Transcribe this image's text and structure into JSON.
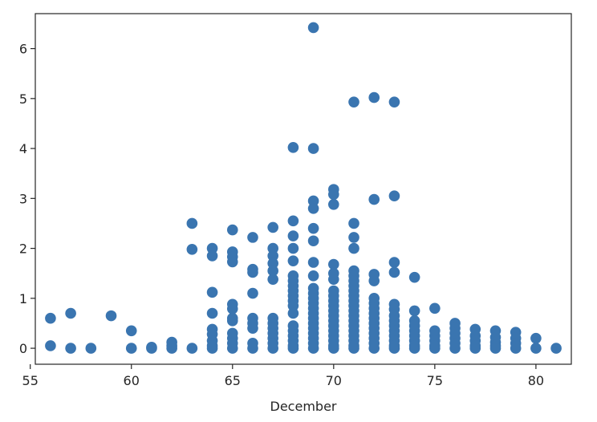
{
  "chart_data": {
    "type": "scatter",
    "title": "",
    "xlabel": "December",
    "ylabel": "",
    "xlim": [
      55.25,
      81.75
    ],
    "ylim": [
      -0.32,
      6.7
    ],
    "xticks": [
      55,
      60,
      65,
      70,
      75,
      80
    ],
    "yticks": [
      0,
      1,
      2,
      3,
      4,
      5,
      6
    ],
    "grid": false,
    "legend": "none",
    "colors": {
      "marker": "#3a75b0",
      "axis": "#262626"
    },
    "series": [
      {
        "points": [
          [
            56,
            0.6
          ],
          [
            56,
            0.05
          ],
          [
            57,
            0.7
          ],
          [
            57,
            0.0
          ],
          [
            58,
            0.0
          ],
          [
            59,
            0.65
          ],
          [
            60,
            0.35
          ],
          [
            60,
            0.0
          ],
          [
            61,
            0.02
          ],
          [
            61,
            0.0
          ],
          [
            62,
            0.12
          ],
          [
            62,
            0.05
          ],
          [
            62,
            0.0
          ],
          [
            63,
            2.5
          ],
          [
            63,
            1.98
          ],
          [
            63,
            0.0
          ],
          [
            64,
            2.0
          ],
          [
            64,
            1.85
          ],
          [
            64,
            1.12
          ],
          [
            64,
            0.7
          ],
          [
            64,
            0.38
          ],
          [
            64,
            0.28
          ],
          [
            64,
            0.15
          ],
          [
            64,
            0.05
          ],
          [
            64,
            0.0
          ],
          [
            65,
            2.37
          ],
          [
            65,
            1.93
          ],
          [
            65,
            1.83
          ],
          [
            65,
            1.73
          ],
          [
            65,
            0.88
          ],
          [
            65,
            0.79
          ],
          [
            65,
            0.6
          ],
          [
            65,
            0.55
          ],
          [
            65,
            0.3
          ],
          [
            65,
            0.2
          ],
          [
            65,
            0.1
          ],
          [
            65,
            0.0
          ],
          [
            66,
            2.22
          ],
          [
            66,
            1.58
          ],
          [
            66,
            1.52
          ],
          [
            66,
            1.1
          ],
          [
            66,
            0.6
          ],
          [
            66,
            0.5
          ],
          [
            66,
            0.4
          ],
          [
            66,
            0.1
          ],
          [
            66,
            0.0
          ],
          [
            67,
            2.42
          ],
          [
            67,
            2.0
          ],
          [
            67,
            1.85
          ],
          [
            67,
            1.7
          ],
          [
            67,
            1.55
          ],
          [
            67,
            1.38
          ],
          [
            67,
            0.6
          ],
          [
            67,
            0.5
          ],
          [
            67,
            0.4
          ],
          [
            67,
            0.3
          ],
          [
            67,
            0.2
          ],
          [
            67,
            0.1
          ],
          [
            67,
            0.0
          ],
          [
            68,
            4.02
          ],
          [
            68,
            2.55
          ],
          [
            68,
            2.25
          ],
          [
            68,
            2.0
          ],
          [
            68,
            1.75
          ],
          [
            68,
            1.45
          ],
          [
            68,
            1.35
          ],
          [
            68,
            1.25
          ],
          [
            68,
            1.15
          ],
          [
            68,
            1.05
          ],
          [
            68,
            0.95
          ],
          [
            68,
            0.85
          ],
          [
            68,
            0.7
          ],
          [
            68,
            0.45
          ],
          [
            68,
            0.35
          ],
          [
            68,
            0.25
          ],
          [
            68,
            0.15
          ],
          [
            68,
            0.05
          ],
          [
            68,
            0.0
          ],
          [
            69,
            6.42
          ],
          [
            69,
            4.0
          ],
          [
            69,
            2.95
          ],
          [
            69,
            2.8
          ],
          [
            69,
            2.4
          ],
          [
            69,
            2.15
          ],
          [
            69,
            1.72
          ],
          [
            69,
            1.45
          ],
          [
            69,
            1.2
          ],
          [
            69,
            1.1
          ],
          [
            69,
            1.0
          ],
          [
            69,
            0.9
          ],
          [
            69,
            0.8
          ],
          [
            69,
            0.7
          ],
          [
            69,
            0.6
          ],
          [
            69,
            0.5
          ],
          [
            69,
            0.4
          ],
          [
            69,
            0.3
          ],
          [
            69,
            0.2
          ],
          [
            69,
            0.1
          ],
          [
            69,
            0.0
          ],
          [
            70,
            3.18
          ],
          [
            70,
            3.08
          ],
          [
            70,
            2.88
          ],
          [
            70,
            1.68
          ],
          [
            70,
            1.5
          ],
          [
            70,
            1.38
          ],
          [
            70,
            1.15
          ],
          [
            70,
            1.05
          ],
          [
            70,
            0.95
          ],
          [
            70,
            0.85
          ],
          [
            70,
            0.75
          ],
          [
            70,
            0.65
          ],
          [
            70,
            0.55
          ],
          [
            70,
            0.45
          ],
          [
            70,
            0.35
          ],
          [
            70,
            0.25
          ],
          [
            70,
            0.15
          ],
          [
            70,
            0.05
          ],
          [
            70,
            0.0
          ],
          [
            71,
            4.93
          ],
          [
            71,
            2.5
          ],
          [
            71,
            2.22
          ],
          [
            71,
            2.0
          ],
          [
            71,
            1.55
          ],
          [
            71,
            1.45
          ],
          [
            71,
            1.35
          ],
          [
            71,
            1.25
          ],
          [
            71,
            1.15
          ],
          [
            71,
            1.05
          ],
          [
            71,
            0.95
          ],
          [
            71,
            0.85
          ],
          [
            71,
            0.75
          ],
          [
            71,
            0.65
          ],
          [
            71,
            0.55
          ],
          [
            71,
            0.45
          ],
          [
            71,
            0.35
          ],
          [
            71,
            0.25
          ],
          [
            71,
            0.15
          ],
          [
            71,
            0.05
          ],
          [
            71,
            0.0
          ],
          [
            72,
            5.02
          ],
          [
            72,
            2.98
          ],
          [
            72,
            1.48
          ],
          [
            72,
            1.35
          ],
          [
            72,
            1.0
          ],
          [
            72,
            0.9
          ],
          [
            72,
            0.8
          ],
          [
            72,
            0.7
          ],
          [
            72,
            0.6
          ],
          [
            72,
            0.5
          ],
          [
            72,
            0.4
          ],
          [
            72,
            0.3
          ],
          [
            72,
            0.2
          ],
          [
            72,
            0.1
          ],
          [
            72,
            0.0
          ],
          [
            73,
            4.93
          ],
          [
            73,
            3.05
          ],
          [
            73,
            1.72
          ],
          [
            73,
            1.52
          ],
          [
            73,
            0.88
          ],
          [
            73,
            0.78
          ],
          [
            73,
            0.65
          ],
          [
            73,
            0.55
          ],
          [
            73,
            0.45
          ],
          [
            73,
            0.35
          ],
          [
            73,
            0.25
          ],
          [
            73,
            0.15
          ],
          [
            73,
            0.05
          ],
          [
            73,
            0.0
          ],
          [
            74,
            1.42
          ],
          [
            74,
            0.75
          ],
          [
            74,
            0.55
          ],
          [
            74,
            0.45
          ],
          [
            74,
            0.35
          ],
          [
            74,
            0.25
          ],
          [
            74,
            0.15
          ],
          [
            74,
            0.05
          ],
          [
            74,
            0.0
          ],
          [
            75,
            0.8
          ],
          [
            75,
            0.35
          ],
          [
            75,
            0.25
          ],
          [
            75,
            0.15
          ],
          [
            75,
            0.05
          ],
          [
            75,
            0.0
          ],
          [
            76,
            0.5
          ],
          [
            76,
            0.4
          ],
          [
            76,
            0.3
          ],
          [
            76,
            0.2
          ],
          [
            76,
            0.1
          ],
          [
            76,
            0.0
          ],
          [
            77,
            0.38
          ],
          [
            77,
            0.25
          ],
          [
            77,
            0.15
          ],
          [
            77,
            0.05
          ],
          [
            77,
            0.0
          ],
          [
            78,
            0.35
          ],
          [
            78,
            0.22
          ],
          [
            78,
            0.12
          ],
          [
            78,
            0.05
          ],
          [
            78,
            0.0
          ],
          [
            79,
            0.32
          ],
          [
            79,
            0.2
          ],
          [
            79,
            0.1
          ],
          [
            79,
            0.0
          ],
          [
            80,
            0.2
          ],
          [
            80,
            0.0
          ],
          [
            81,
            0.0
          ]
        ]
      }
    ]
  }
}
